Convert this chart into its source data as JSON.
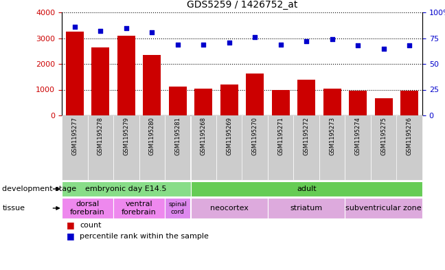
{
  "title": "GDS5259 / 1426752_at",
  "samples": [
    "GSM1195277",
    "GSM1195278",
    "GSM1195279",
    "GSM1195280",
    "GSM1195281",
    "GSM1195268",
    "GSM1195269",
    "GSM1195270",
    "GSM1195271",
    "GSM1195272",
    "GSM1195273",
    "GSM1195274",
    "GSM1195275",
    "GSM1195276"
  ],
  "counts": [
    3250,
    2650,
    3100,
    2350,
    1120,
    1050,
    1200,
    1620,
    1000,
    1380,
    1050,
    960,
    680,
    960
  ],
  "percentiles": [
    86,
    82,
    85,
    81,
    69,
    69,
    71,
    76,
    69,
    72,
    74,
    68,
    65,
    68
  ],
  "ylim_left": [
    0,
    4000
  ],
  "ylim_right": [
    0,
    100
  ],
  "yticks_left": [
    0,
    1000,
    2000,
    3000,
    4000
  ],
  "yticks_right": [
    0,
    25,
    50,
    75,
    100
  ],
  "bar_color": "#cc0000",
  "dot_color": "#0000cc",
  "tick_label_color_left": "#cc0000",
  "tick_label_color_right": "#0000cc",
  "dev_stage_groups": [
    {
      "label": "embryonic day E14.5",
      "start": 0,
      "end": 4,
      "color": "#88dd88"
    },
    {
      "label": "adult",
      "start": 5,
      "end": 13,
      "color": "#66cc55"
    }
  ],
  "tissue_groups": [
    {
      "label": "dorsal\nforebrain",
      "start": 0,
      "end": 1,
      "color": "#ee88ee"
    },
    {
      "label": "ventral\nforebrain",
      "start": 2,
      "end": 3,
      "color": "#ee88ee"
    },
    {
      "label": "spinal\ncord",
      "start": 4,
      "end": 4,
      "color": "#dd88ee"
    },
    {
      "label": "neocortex",
      "start": 5,
      "end": 7,
      "color": "#ddaadd"
    },
    {
      "label": "striatum",
      "start": 8,
      "end": 10,
      "color": "#ddaadd"
    },
    {
      "label": "subventricular zone",
      "start": 11,
      "end": 13,
      "color": "#ddaadd"
    }
  ],
  "legend_count_label": "count",
  "legend_percentile_label": "percentile rank within the sample",
  "dev_stage_label": "development stage",
  "tissue_label": "tissue",
  "xtick_bg_color": "#cccccc",
  "fig_width": 6.48,
  "fig_height": 3.93,
  "dpi": 100
}
